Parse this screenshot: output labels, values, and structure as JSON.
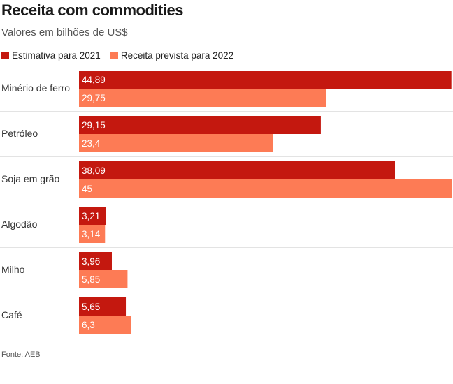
{
  "header": {
    "title": "Receita com commodities",
    "subtitle": "Valores em bilhões de US$"
  },
  "legend": [
    {
      "label": "Estimativa para 2021",
      "color": "#c4180f"
    },
    {
      "label": "Receita prevista para 2022",
      "color": "#fd7b55"
    }
  ],
  "footer": {
    "source": "Fonte: AEB"
  },
  "chart_data": {
    "type": "bar",
    "orientation": "horizontal",
    "title": "Receita com commodities",
    "subtitle": "Valores em bilhões de US$",
    "categories": [
      "Minério de ferro",
      "Petróleo",
      "Soja em grão",
      "Algodão",
      "Milho",
      "Café"
    ],
    "series": [
      {
        "name": "Estimativa para 2021",
        "color": "#c4180f",
        "values": [
          44.89,
          29.15,
          38.09,
          3.21,
          3.96,
          5.65
        ],
        "labels": [
          "44,89",
          "29,15",
          "38,09",
          "3,21",
          "3,96",
          "5,65"
        ]
      },
      {
        "name": "Receita prevista para 2022",
        "color": "#fd7b55",
        "values": [
          29.75,
          23.4,
          45,
          3.14,
          5.85,
          6.3
        ],
        "labels": [
          "29,75",
          "23,4",
          "45",
          "3,14",
          "5,85",
          "6,3"
        ]
      }
    ],
    "xlim": [
      0,
      45
    ],
    "grid": false,
    "legend_position": "top-left"
  }
}
